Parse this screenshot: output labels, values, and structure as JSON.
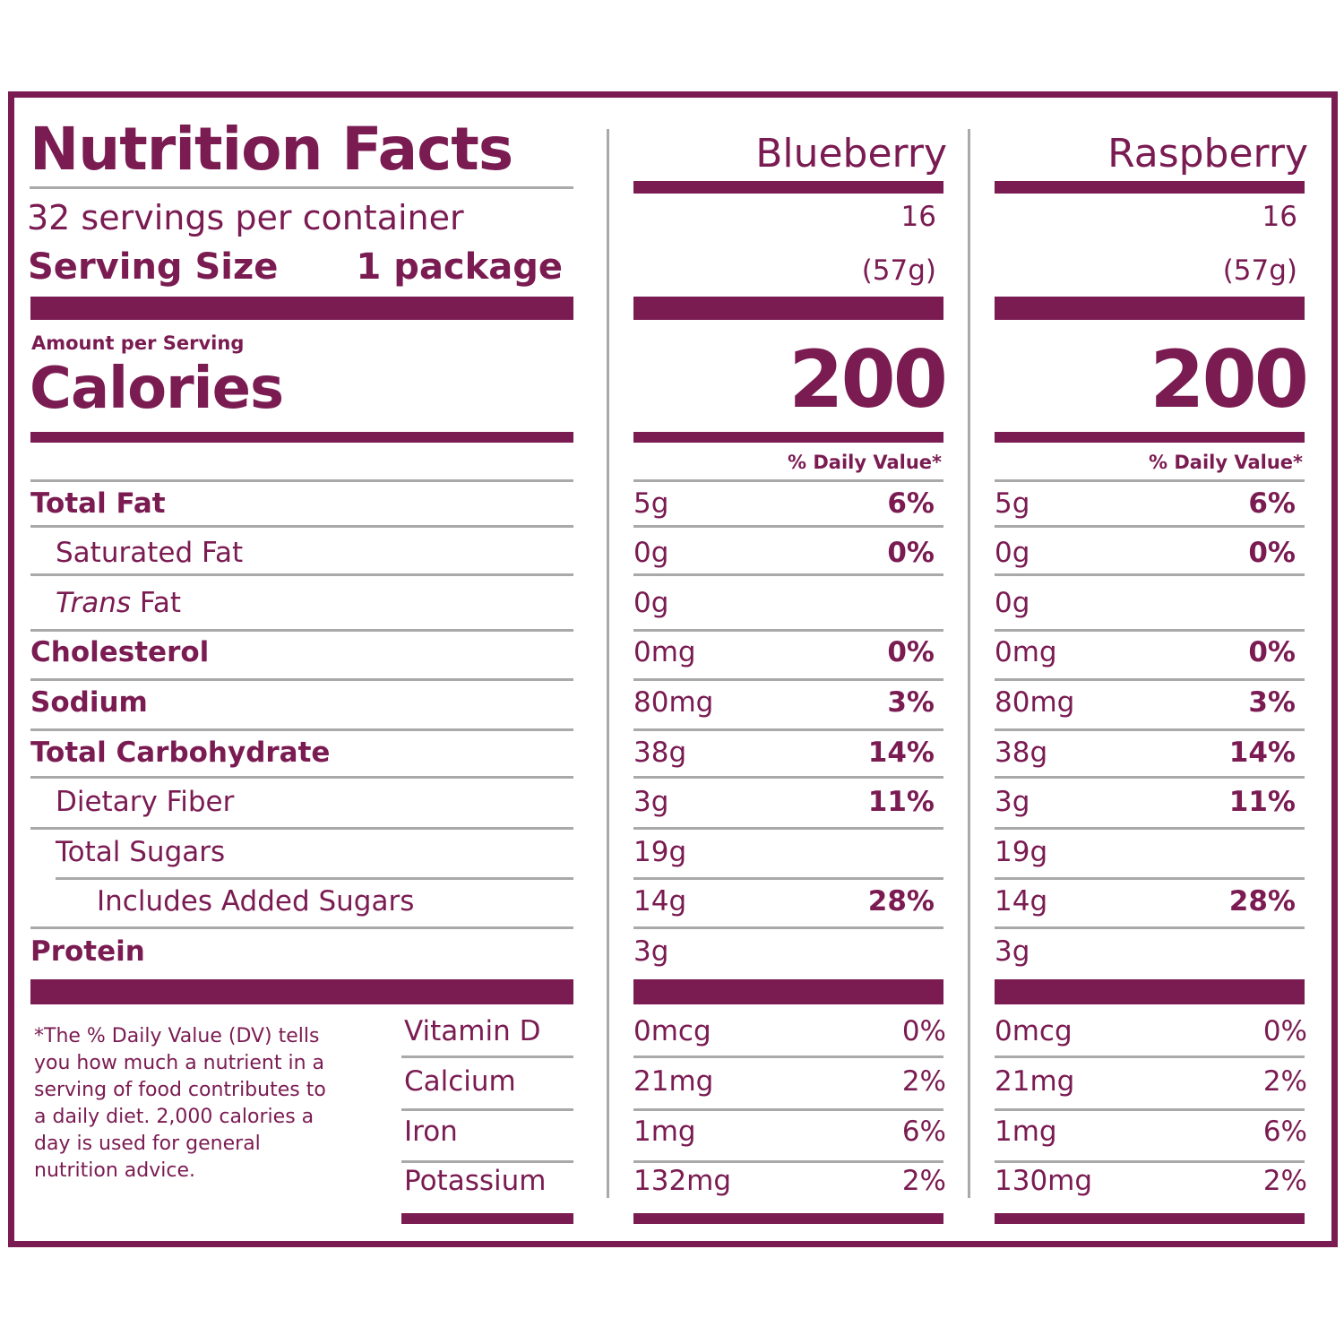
{
  "label": {
    "title": "Nutrition Facts",
    "servings_per_container": "32 servings per container",
    "serving_size_label": "Serving Size",
    "serving_size_value": "1 package",
    "amount_per_serving": "Amount per Serving",
    "calories_label": "Calories",
    "nutrients": [
      "Total Fat",
      "Saturated Fat",
      "Trans Fat",
      "Cholesterol",
      "Sodium",
      "Total Carbohydrate",
      "Dietary Fiber",
      "Total Sugars",
      "Includes Added Sugars",
      "Protein"
    ],
    "trans_word": "Trans",
    "trans_suffix": " Fat",
    "footnote": "*The % Daily Value (DV) tells you how much a nutrient in a serving of food contributes to a daily diet. 2,000 calories a day is used for general nutrition advice.",
    "vitamins": [
      "Vitamin D",
      "Calcium",
      "Iron",
      "Potassium"
    ]
  },
  "columns": [
    {
      "name": "Blueberry",
      "servings": "16",
      "serving_grams": "(57g)",
      "calories": "200",
      "dv_header": "% Daily Value*",
      "amounts": [
        "5g",
        "0g",
        "0g",
        "0mg",
        "80mg",
        "38g",
        "3g",
        "19g",
        "14g",
        "3g"
      ],
      "dv": [
        "6%",
        "0%",
        "",
        "0%",
        "3%",
        "14%",
        "11%",
        "",
        "28%",
        ""
      ],
      "vit_amounts": [
        "0mcg",
        "21mg",
        "1mg",
        "132mg"
      ],
      "vit_dv": [
        "0%",
        "2%",
        "6%",
        "2%"
      ]
    },
    {
      "name": "Raspberry",
      "servings": "16",
      "serving_grams": "(57g)",
      "calories": "200",
      "dv_header": "% Daily Value*",
      "amounts": [
        "5g",
        "0g",
        "0g",
        "0mg",
        "80mg",
        "38g",
        "3g",
        "19g",
        "14g",
        "3g"
      ],
      "dv": [
        "6%",
        "0%",
        "",
        "0%",
        "3%",
        "14%",
        "11%",
        "",
        "28%",
        ""
      ],
      "vit_amounts": [
        "0mcg",
        "21mg",
        "1mg",
        "130mg"
      ],
      "vit_dv": [
        "0%",
        "2%",
        "6%",
        "2%"
      ]
    }
  ],
  "colors": {
    "brand": "#7a1b52",
    "rule": "#a9a9a9"
  }
}
